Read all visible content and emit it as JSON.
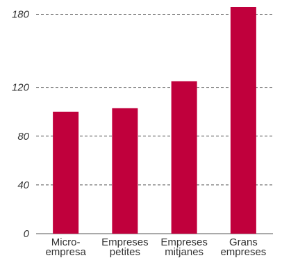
{
  "chart_data": {
    "type": "bar",
    "categories": [
      [
        "Micro-",
        "empresa"
      ],
      [
        "Empreses",
        "petites"
      ],
      [
        "Empreses",
        "mitjanes"
      ],
      [
        "Grans",
        "empreses"
      ]
    ],
    "values": [
      100,
      103,
      125,
      186
    ],
    "ylim": [
      0,
      190
    ],
    "yticks": [
      0,
      40,
      80,
      120,
      180
    ],
    "ytick_labels": [
      "0",
      "40",
      "80",
      "120",
      "180"
    ],
    "grid": true,
    "bar_color": "#c0003c",
    "title": "",
    "xlabel": "",
    "ylabel": ""
  }
}
